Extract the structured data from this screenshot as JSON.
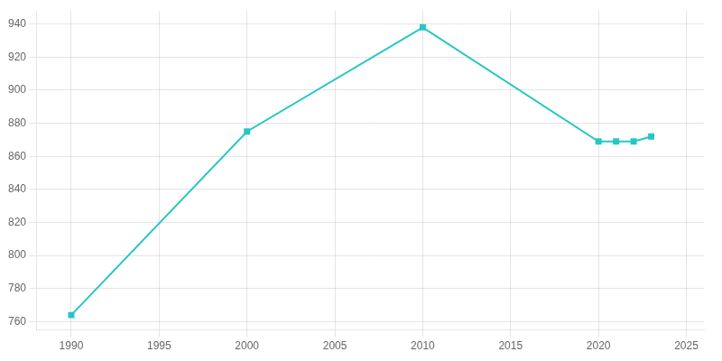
{
  "chart_data": {
    "type": "line",
    "x": [
      1990,
      2000,
      2010,
      2020,
      2021,
      2022,
      2023
    ],
    "values": [
      764,
      875,
      938,
      869,
      869,
      869,
      872
    ],
    "color": "#26c6c6",
    "marker": "square",
    "xlim": [
      1988,
      2026
    ],
    "ylim": [
      755,
      948
    ],
    "xticks": [
      1990,
      1995,
      2000,
      2005,
      2010,
      2015,
      2020,
      2025
    ],
    "yticks": [
      760,
      780,
      800,
      820,
      840,
      860,
      880,
      900,
      920,
      940
    ],
    "grid": true
  }
}
